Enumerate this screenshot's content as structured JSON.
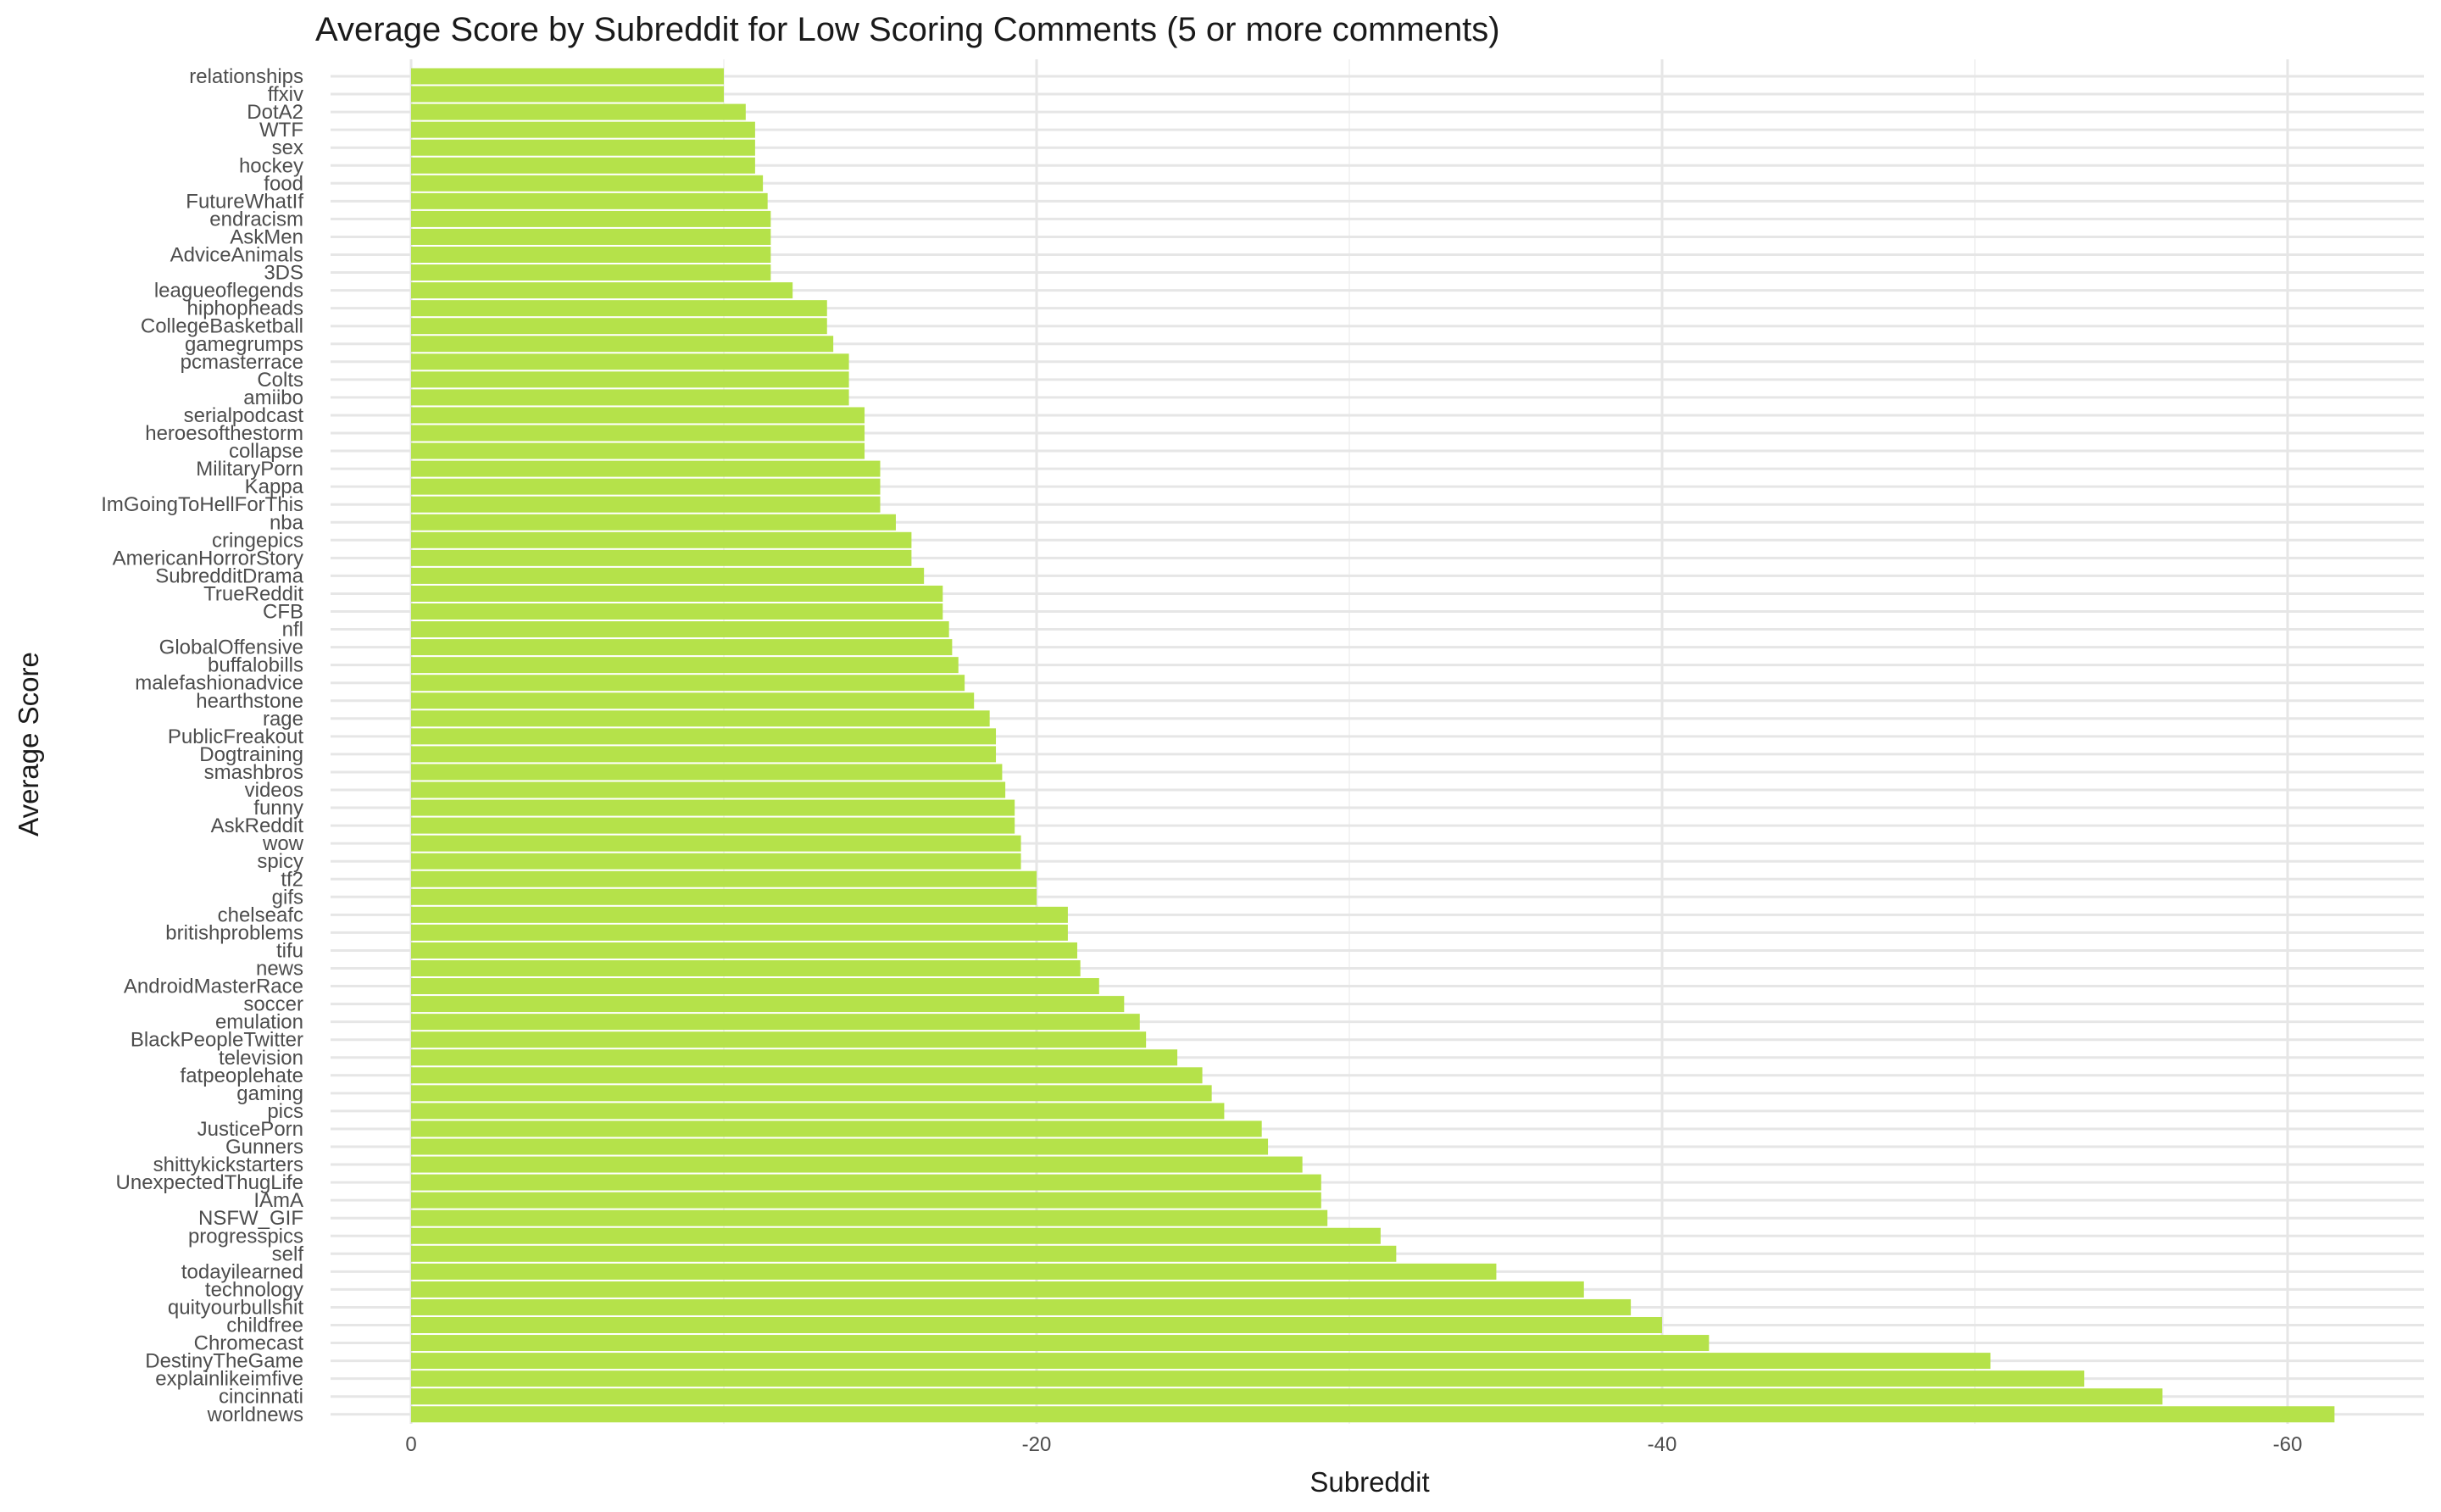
{
  "chart_data": {
    "type": "bar",
    "orientation": "horizontal",
    "title": "Average Score by Subreddit for Low Scoring Comments (5 or more comments)",
    "xlabel": "Subreddit",
    "ylabel": "Average Score",
    "xlim": [
      0,
      -63.5
    ],
    "xticks": [
      0,
      -20,
      -40,
      -60
    ],
    "xtick_labels": [
      "0",
      "-20",
      "-40",
      "-60"
    ],
    "grid": true,
    "legend": "none",
    "bar_color": "#b5e24a",
    "categories": [
      "relationships",
      "ffxiv",
      "DotA2",
      "WTF",
      "sex",
      "hockey",
      "food",
      "FutureWhatIf",
      "endracism",
      "AskMen",
      "AdviceAnimals",
      "3DS",
      "leagueoflegends",
      "hiphopheads",
      "CollegeBasketball",
      "gamegrumps",
      "pcmasterrace",
      "Colts",
      "amiibo",
      "serialpodcast",
      "heroesofthestorm",
      "collapse",
      "MilitaryPorn",
      "Kappa",
      "ImGoingToHellForThis",
      "nba",
      "cringepics",
      "AmericanHorrorStory",
      "SubredditDrama",
      "TrueReddit",
      "CFB",
      "nfl",
      "GlobalOffensive",
      "buffalobills",
      "malefashionadvice",
      "hearthstone",
      "rage",
      "PublicFreakout",
      "Dogtraining",
      "smashbros",
      "videos",
      "funny",
      "AskReddit",
      "wow",
      "spicy",
      "tf2",
      "gifs",
      "chelseafc",
      "britishproblems",
      "tifu",
      "news",
      "AndroidMasterRace",
      "soccer",
      "emulation",
      "BlackPeopleTwitter",
      "television",
      "fatpeoplehate",
      "gaming",
      "pics",
      "JusticePorn",
      "Gunners",
      "shittykickstarters",
      "UnexpectedThugLife",
      "IAmA",
      "NSFW_GIF",
      "progresspics",
      "self",
      "todayilearned",
      "technology",
      "quityourbullshit",
      "childfree",
      "Chromecast",
      "DestinyTheGame",
      "explainlikeimfive",
      "cincinnati",
      "worldnews"
    ],
    "values": [
      -10.0,
      -10.0,
      -10.7,
      -11.0,
      -11.0,
      -11.0,
      -11.25,
      -11.4,
      -11.5,
      -11.5,
      -11.5,
      -11.5,
      -12.2,
      -13.3,
      -13.3,
      -13.5,
      -14.0,
      -14.0,
      -14.0,
      -14.5,
      -14.5,
      -14.5,
      -15.0,
      -15.0,
      -15.0,
      -15.5,
      -16.0,
      -16.0,
      -16.4,
      -17.0,
      -17.0,
      -17.2,
      -17.3,
      -17.5,
      -17.7,
      -18.0,
      -18.5,
      -18.7,
      -18.7,
      -18.9,
      -19.0,
      -19.3,
      -19.3,
      -19.5,
      -19.5,
      -20.0,
      -20.0,
      -21.0,
      -21.0,
      -21.3,
      -21.4,
      -22.0,
      -22.8,
      -23.3,
      -23.5,
      -24.5,
      -25.3,
      -25.6,
      -26.0,
      -27.2,
      -27.4,
      -28.5,
      -29.1,
      -29.1,
      -29.3,
      -31.0,
      -31.5,
      -34.7,
      -37.5,
      -39.0,
      -40.0,
      -41.5,
      -50.5,
      -53.5,
      -56.0,
      -61.5
    ]
  }
}
